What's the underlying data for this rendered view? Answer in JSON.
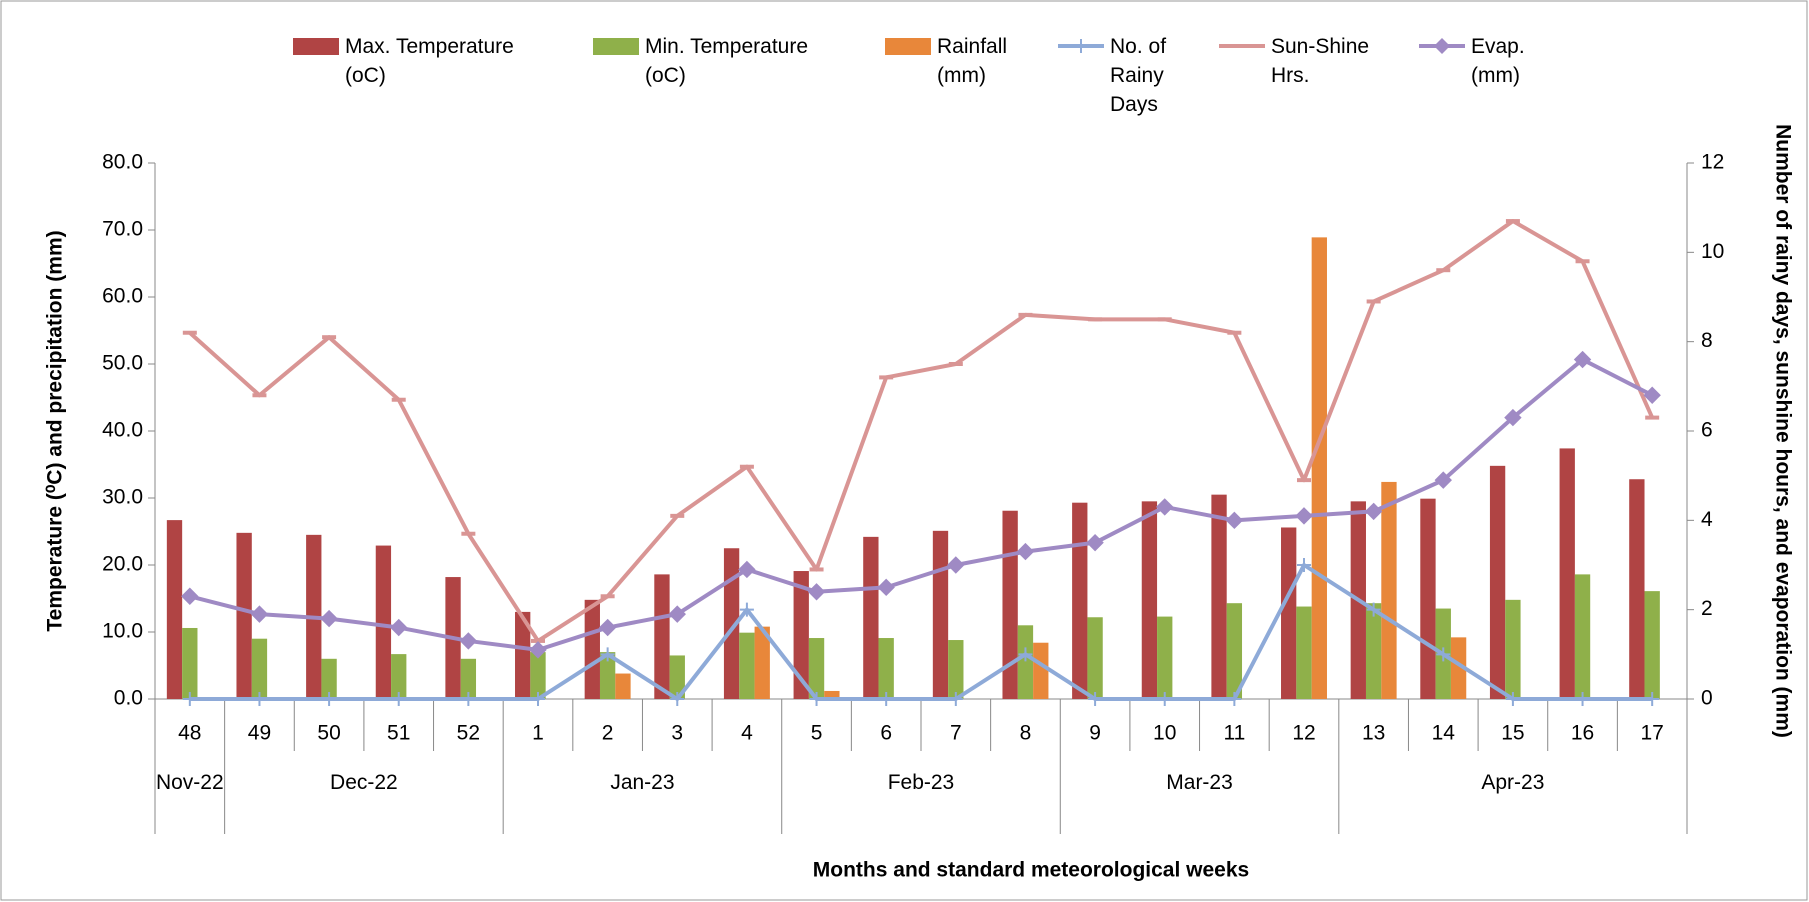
{
  "chart_data": {
    "type": "bar-line",
    "categories": [
      "48",
      "49",
      "50",
      "51",
      "52",
      "1",
      "2",
      "3",
      "4",
      "5",
      "6",
      "7",
      "8",
      "9",
      "10",
      "11",
      "12",
      "13",
      "14",
      "15",
      "16",
      "17"
    ],
    "month_groups": [
      {
        "label": "Nov-22",
        "weeks": 1
      },
      {
        "label": "Dec-22",
        "weeks": 4
      },
      {
        "label": "Jan-23",
        "weeks": 4
      },
      {
        "label": "Feb-23",
        "weeks": 4
      },
      {
        "label": "Mar-23",
        "weeks": 4
      },
      {
        "label": "Apr-23",
        "weeks": 5
      }
    ],
    "x_label": "Months and standard meteorological weeks",
    "y_label": "Temperature (⁰C) and precipitation (mm)",
    "y2_label": "Number of rainy days, sunshine hours,  and evaporation (mm)",
    "ylim": [
      0,
      80
    ],
    "yticks": [
      {
        "value": 0,
        "label": "0.0"
      },
      {
        "value": 10,
        "label": "10.0"
      },
      {
        "value": 20,
        "label": "20.0"
      },
      {
        "value": 30,
        "label": "30.0"
      },
      {
        "value": 40,
        "label": "40.0"
      },
      {
        "value": 50,
        "label": "50.0"
      },
      {
        "value": 60,
        "label": "60.0"
      },
      {
        "value": 70,
        "label": "70.0"
      },
      {
        "value": 80,
        "label": "80.0"
      }
    ],
    "y2lim": [
      0,
      12
    ],
    "y2ticks": [
      0,
      2,
      4,
      6,
      8,
      10,
      12
    ],
    "series": [
      {
        "name": "Max. Temperature (oC)",
        "kind": "bar",
        "color": "#b04444",
        "values": [
          26.7,
          24.8,
          24.5,
          22.9,
          18.2,
          13.0,
          14.8,
          18.6,
          22.5,
          19.1,
          24.2,
          25.1,
          28.1,
          29.3,
          29.5,
          30.5,
          25.6,
          29.5,
          29.9,
          34.8,
          37.4,
          32.8
        ]
      },
      {
        "name": "Min. Temperature (oC)",
        "kind": "bar",
        "color": "#8fb04a",
        "values": [
          10.6,
          9.0,
          6.0,
          6.7,
          6.0,
          7.0,
          7.0,
          6.5,
          9.9,
          9.1,
          9.1,
          8.8,
          11.0,
          12.2,
          12.3,
          14.3,
          13.8,
          14.3,
          13.5,
          14.8,
          18.6,
          16.1
        ]
      },
      {
        "name": "Rainfall (mm)",
        "kind": "bar",
        "color": "#e8873a",
        "values": [
          0,
          0,
          0,
          0,
          0,
          0,
          3.8,
          0,
          10.8,
          1.2,
          0,
          0,
          8.4,
          0,
          0,
          0,
          68.9,
          32.4,
          9.2,
          0,
          0,
          0
        ]
      },
      {
        "name": "No. of Rainy Days",
        "kind": "line",
        "marker": "plus",
        "axis": "y2",
        "color": "#8eaad8",
        "values": [
          0,
          0,
          0,
          0,
          0,
          0,
          1,
          0,
          2,
          0,
          0,
          0,
          1,
          0,
          0,
          0,
          3,
          2,
          1,
          0,
          0,
          0
        ]
      },
      {
        "name": "Sun-Shine Hrs.",
        "kind": "line",
        "marker": "dash",
        "axis": "y2",
        "color": "#d99594",
        "values": [
          8.2,
          6.8,
          8.1,
          6.7,
          3.7,
          1.3,
          2.3,
          4.1,
          5.2,
          2.9,
          7.2,
          7.5,
          8.6,
          8.5,
          8.5,
          8.2,
          4.9,
          8.9,
          9.6,
          10.7,
          9.8,
          6.3
        ]
      },
      {
        "name": "Evap. (mm)",
        "kind": "line",
        "marker": "diamond",
        "axis": "y2",
        "color": "#9f8ac4",
        "values": [
          2.3,
          1.9,
          1.8,
          1.6,
          1.3,
          1.1,
          1.6,
          1.9,
          2.9,
          2.4,
          2.5,
          3.0,
          3.3,
          3.5,
          4.3,
          4.0,
          4.1,
          4.2,
          4.9,
          6.3,
          7.6,
          6.8
        ]
      }
    ]
  }
}
